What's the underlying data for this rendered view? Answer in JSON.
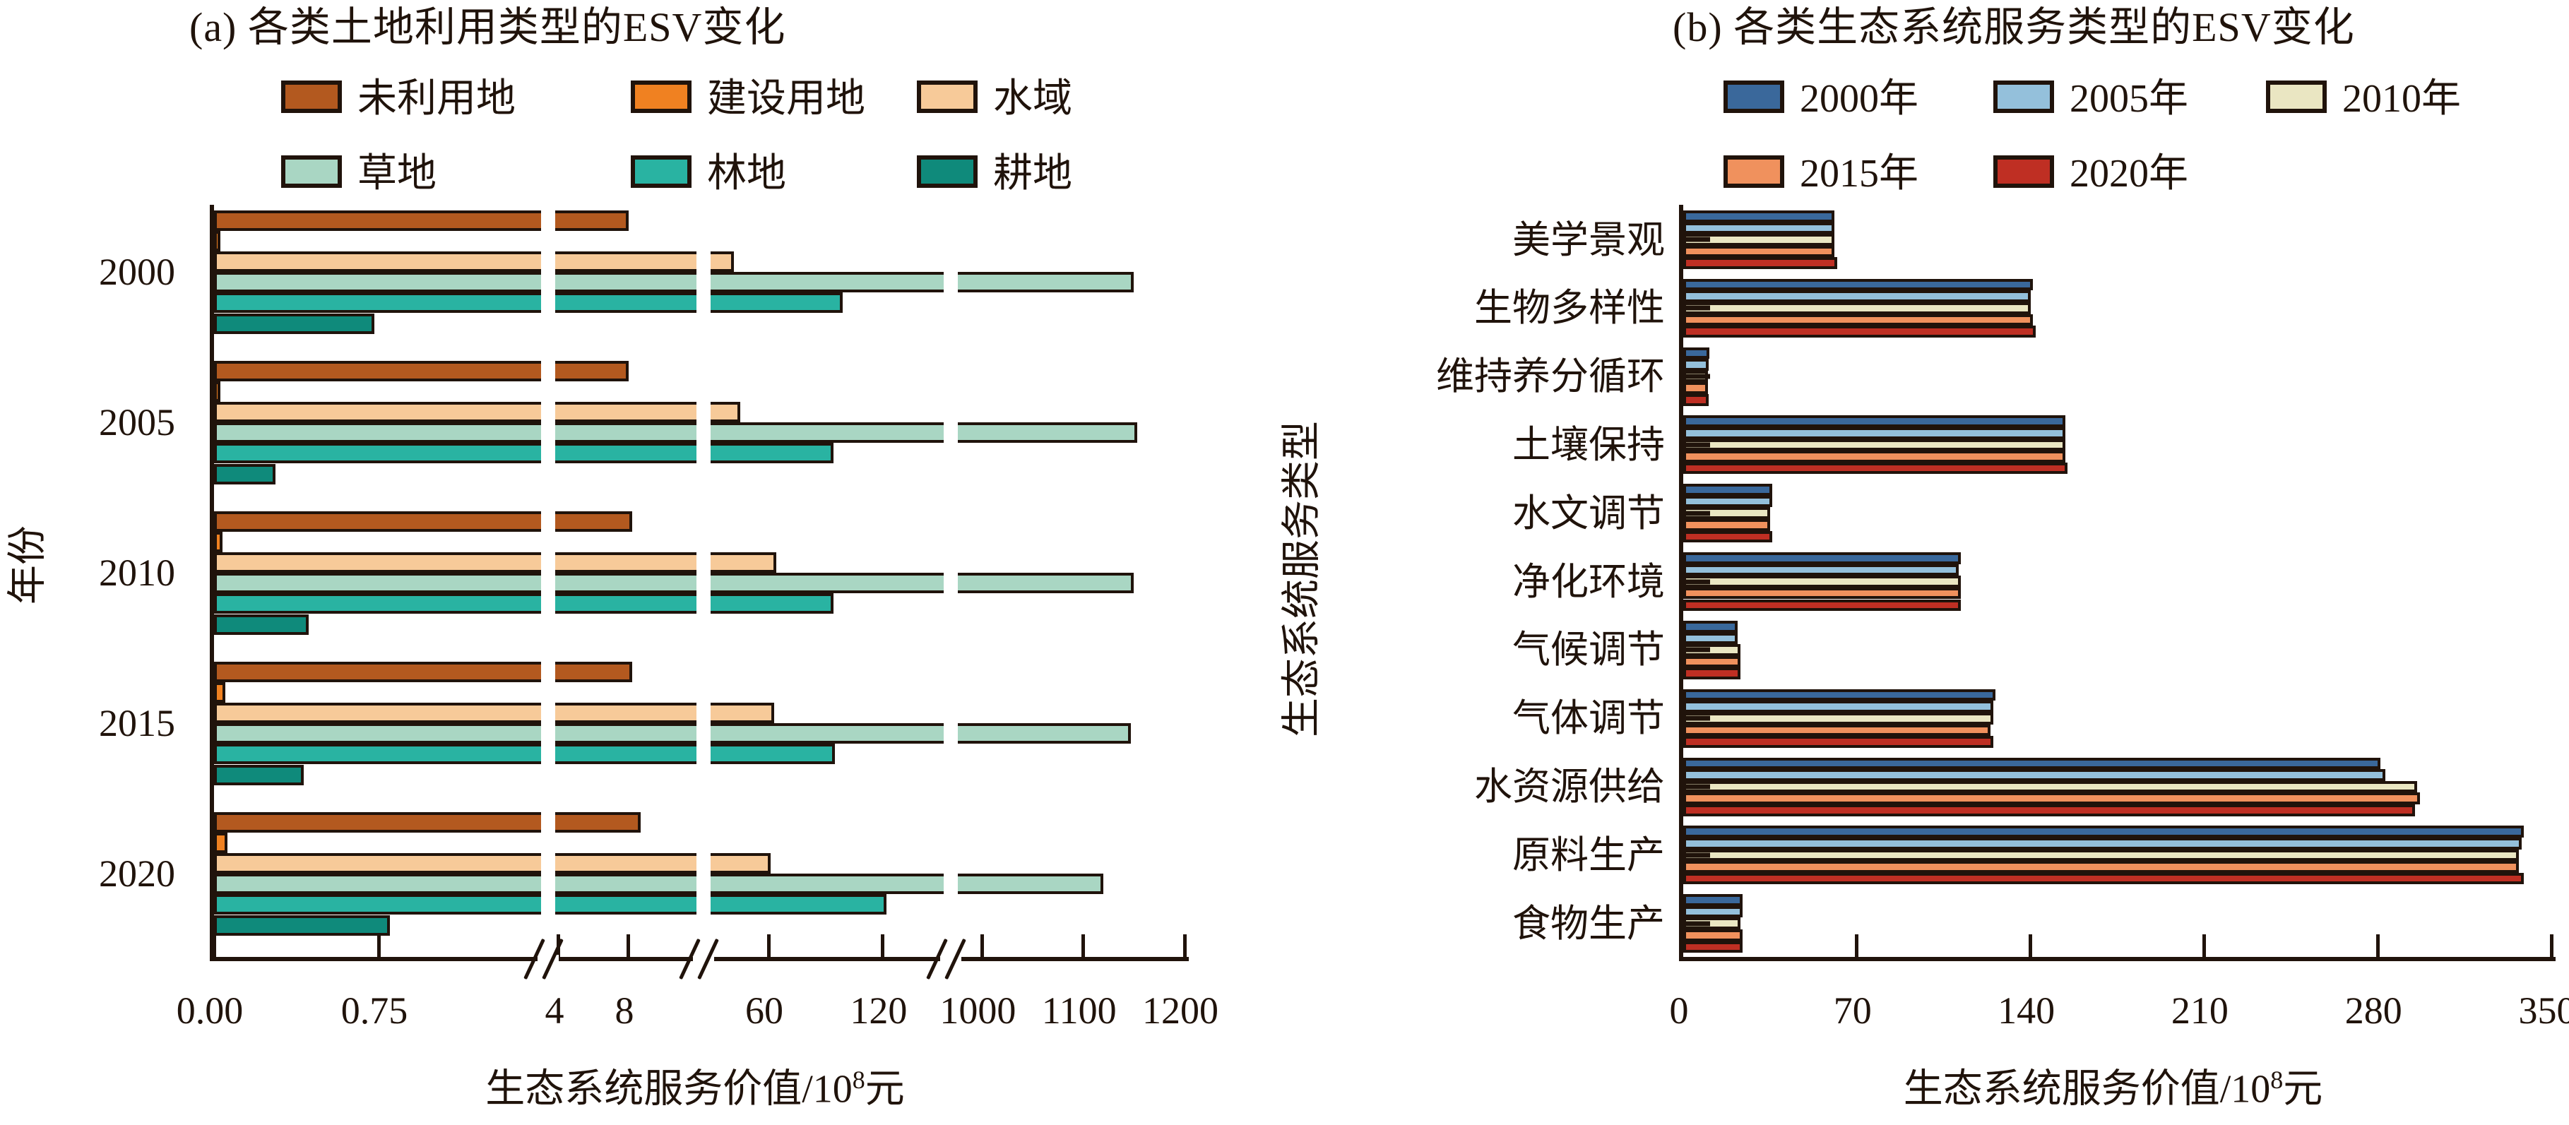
{
  "figure": {
    "background": "#ffffff",
    "ink_color": "#20130b"
  },
  "panel_a": {
    "title": "(a) 各类土地利用类型的ESV变化",
    "ylabel": "年份",
    "xlabel": {
      "pre": "生态系统服务价值/10",
      "sup": "8",
      "post": "元"
    }
  },
  "panel_b": {
    "title": "(b) 各类生态系统服务类型的ESV变化",
    "ylabel": "生态系统服务类型",
    "xlabel": {
      "pre": "生态系统服务价值/10",
      "sup": "8",
      "post": "元"
    }
  },
  "chart_data": [
    {
      "type": "bar",
      "orientation": "horizontal",
      "panel": "a",
      "title": "(a) 各类土地利用类型的ESV变化",
      "xlabel": "生态系统服务价值/10⁸元",
      "ylabel": "年份",
      "categories": [
        "2000",
        "2005",
        "2010",
        "2015",
        "2020"
      ],
      "series": [
        {
          "name": "未利用地",
          "color": "#B3591F",
          "values": [
            8.0,
            8.0,
            8.2,
            8.2,
            8.7
          ]
        },
        {
          "name": "建设用地",
          "color": "#F08121",
          "values": [
            0.03,
            0.03,
            0.04,
            0.05,
            0.06
          ]
        },
        {
          "name": "水域",
          "color": "#F7CA99",
          "values": [
            42,
            45,
            64,
            63,
            61
          ]
        },
        {
          "name": "草地",
          "color": "#A9D6C3",
          "values": [
            1150,
            1153,
            1150,
            1147,
            1120
          ]
        },
        {
          "name": "林地",
          "color": "#29B3A2",
          "values": [
            99,
            94,
            94,
            95,
            122
          ]
        },
        {
          "name": "耕地",
          "color": "#0F8A7B",
          "values": [
            0.73,
            0.28,
            0.43,
            0.41,
            0.8
          ]
        }
      ],
      "x_ticks": [
        {
          "label": "0.00",
          "value": 0
        },
        {
          "label": "0.75",
          "value": 0.75
        },
        {
          "label": "4",
          "value": 4
        },
        {
          "label": "8",
          "value": 8
        },
        {
          "label": "60",
          "value": 60
        },
        {
          "label": "120",
          "value": 120
        },
        {
          "label": "1000",
          "value": 1000
        },
        {
          "label": "1100",
          "value": 1100
        },
        {
          "label": "1200",
          "value": 1200
        }
      ],
      "axis_breaks": [
        [
          1.5,
          3.8
        ],
        [
          11.9,
          29.6
        ],
        [
          152,
          976
        ]
      ],
      "axis_note": "x axis has three scale breaks; units 10^8 yuan",
      "grid": false,
      "legend_position": "top"
    },
    {
      "type": "bar",
      "orientation": "horizontal",
      "panel": "b",
      "title": "(b) 各类生态系统服务类型的ESV变化",
      "xlabel": "生态系统服务价值/10⁸元",
      "ylabel": "生态系统服务类型",
      "categories": [
        "美学景观",
        "生物多样性",
        "维持养分循环",
        "土壤保持",
        "水文调节",
        "净化环境",
        "气候调节",
        "气体调节",
        "水资源供给",
        "原料生产",
        "食物生产"
      ],
      "series": [
        {
          "name": "2000年",
          "color": "#3A689B",
          "values": [
            61,
            141,
            10.5,
            154,
            36,
            112,
            22,
            126,
            281,
            339,
            24
          ]
        },
        {
          "name": "2005年",
          "color": "#94C0DB",
          "values": [
            61,
            140,
            10.2,
            154,
            36,
            111,
            22,
            125,
            283,
            338,
            24
          ]
        },
        {
          "name": "2010年",
          "color": "#EAE6C2",
          "values": [
            61,
            140,
            10.0,
            154,
            35,
            112,
            23,
            125,
            296,
            337,
            23
          ]
        },
        {
          "name": "2015年",
          "color": "#F0915D",
          "values": [
            61,
            141,
            10.0,
            154,
            35,
            112,
            23,
            124,
            297,
            337,
            24
          ]
        },
        {
          "name": "2020年",
          "color": "#BF2F23",
          "values": [
            62,
            142,
            10.2,
            155,
            36,
            112,
            23,
            125,
            295,
            339,
            24
          ]
        }
      ],
      "x_ticks": [
        {
          "label": "0",
          "value": 0
        },
        {
          "label": "70",
          "value": 70
        },
        {
          "label": "140",
          "value": 140
        },
        {
          "label": "210",
          "value": 210
        },
        {
          "label": "280",
          "value": 280
        },
        {
          "label": "350",
          "value": 350
        }
      ],
      "xlim": [
        0,
        350
      ],
      "grid": false,
      "legend_position": "top"
    }
  ]
}
